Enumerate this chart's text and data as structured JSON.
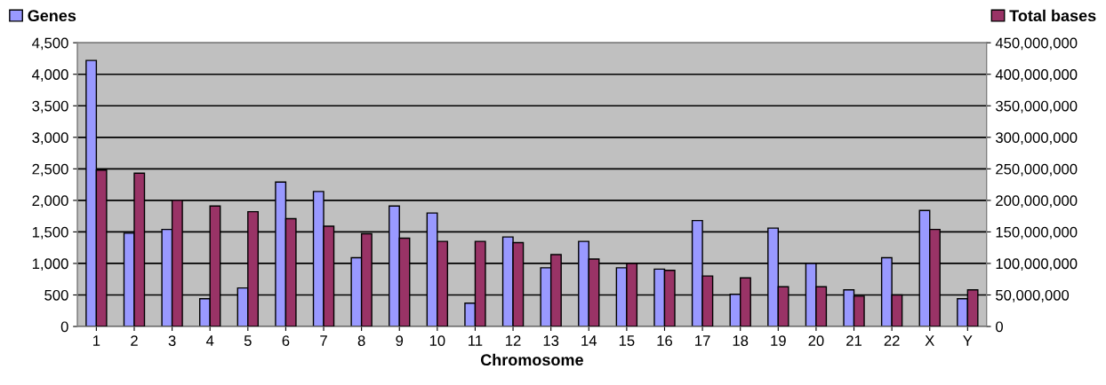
{
  "chart_data": {
    "type": "bar",
    "xlabel": "Chromosome",
    "categories": [
      "1",
      "2",
      "3",
      "4",
      "5",
      "6",
      "7",
      "8",
      "9",
      "10",
      "11",
      "12",
      "13",
      "14",
      "15",
      "16",
      "17",
      "18",
      "19",
      "20",
      "21",
      "22",
      "X",
      "Y"
    ],
    "series": [
      {
        "name": "Genes",
        "color": "#9999ff",
        "values": [
          4220,
          1480,
          1540,
          440,
          610,
          2290,
          2140,
          1090,
          1910,
          1800,
          370,
          1420,
          930,
          1350,
          930,
          910,
          1680,
          510,
          1560,
          1000,
          580,
          1090,
          1840,
          440
        ]
      },
      {
        "name": "Total bases",
        "color": "#993366",
        "axis": "y2",
        "values": [
          248000000,
          243000000,
          200000000,
          191000000,
          182000000,
          171000000,
          159000000,
          147000000,
          140000000,
          135000000,
          135000000,
          133000000,
          114000000,
          107000000,
          100000000,
          89000000,
          80000000,
          77000000,
          63000000,
          63000000,
          48000000,
          50000000,
          154000000,
          58000000
        ]
      }
    ],
    "ylim": [
      0,
      4500
    ],
    "yticks": [
      0,
      500,
      {
        "value": 1000,
        "label": "1,000"
      },
      {
        "value": 1500,
        "label": "1,500"
      },
      {
        "value": 2000,
        "label": "2,000"
      },
      {
        "value": 2500,
        "label": "2,500"
      },
      {
        "value": 3000,
        "label": "3,000"
      },
      {
        "value": 3500,
        "label": "3,500"
      },
      {
        "value": 4000,
        "label": "4,000"
      },
      {
        "value": 4500,
        "label": "4,500"
      }
    ],
    "y2lim": [
      0,
      450000000
    ],
    "y2ticks": [
      0,
      {
        "value": 50000000,
        "label": "50,000,000"
      },
      {
        "value": 100000000,
        "label": "100,000,000"
      },
      {
        "value": 150000000,
        "label": "150,000,000"
      },
      {
        "value": 200000000,
        "label": "200,000,000"
      },
      {
        "value": 250000000,
        "label": "250,000,000"
      },
      {
        "value": 300000000,
        "label": "300,000,000"
      },
      {
        "value": 350000000,
        "label": "350,000,000"
      },
      {
        "value": 400000000,
        "label": "400,000,000"
      },
      {
        "value": 450000000,
        "label": "450,000,000"
      }
    ],
    "grid": "y",
    "legend": "top"
  }
}
